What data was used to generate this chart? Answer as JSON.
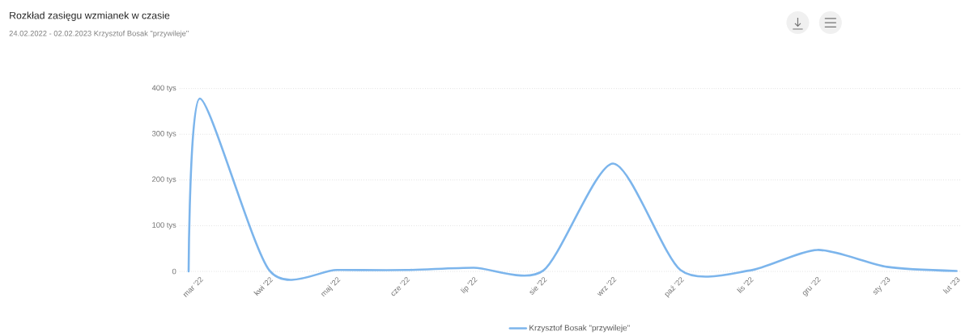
{
  "chart_data": {
    "type": "line",
    "title": "Rozkład zasięgu wzmianek w czasie",
    "subtitle": "24.02.2022 - 02.02.2023   Krzysztof Bosak \"przywileje\"",
    "x": [
      "2022-02-24",
      "2022-03-01",
      "2022-04-01",
      "2022-05-01",
      "2022-06-01",
      "2022-07-01",
      "2022-08-01",
      "2022-09-01",
      "2022-10-01",
      "2022-11-01",
      "2022-12-01",
      "2023-01-01",
      "2023-02-01"
    ],
    "series": [
      {
        "name": "Krzysztof Bosak \"przywileje\"",
        "color": "#7cb5ec",
        "values": [
          0,
          378,
          2,
          3,
          3,
          8,
          2,
          236,
          3,
          2,
          47,
          10,
          1
        ]
      }
    ],
    "xlim": [
      "2022-02-20",
      "2023-02-03"
    ],
    "xticks": [
      {
        "value": "2022-03-01",
        "label": "mar '22"
      },
      {
        "value": "2022-04-01",
        "label": "kwi '22"
      },
      {
        "value": "2022-05-01",
        "label": "maj '22"
      },
      {
        "value": "2022-06-01",
        "label": "cze '22"
      },
      {
        "value": "2022-07-01",
        "label": "lip '22"
      },
      {
        "value": "2022-08-01",
        "label": "sie '22"
      },
      {
        "value": "2022-09-01",
        "label": "wrz '22"
      },
      {
        "value": "2022-10-01",
        "label": "paź '22"
      },
      {
        "value": "2022-11-01",
        "label": "lis '22"
      },
      {
        "value": "2022-12-01",
        "label": "gru '22"
      },
      {
        "value": "2023-01-01",
        "label": "sty '23"
      },
      {
        "value": "2023-02-01",
        "label": "lut '23"
      }
    ],
    "ylim": [
      0,
      400
    ],
    "yticks": [
      0,
      {
        "value": 100,
        "label": "100 tys"
      },
      {
        "value": 200,
        "label": "200 tys"
      },
      {
        "value": 300,
        "label": "300 tys"
      },
      {
        "value": 400,
        "label": "400 tys"
      }
    ],
    "grid": "y",
    "legend": "bottom",
    "marker": "none",
    "line_style": "solid"
  }
}
